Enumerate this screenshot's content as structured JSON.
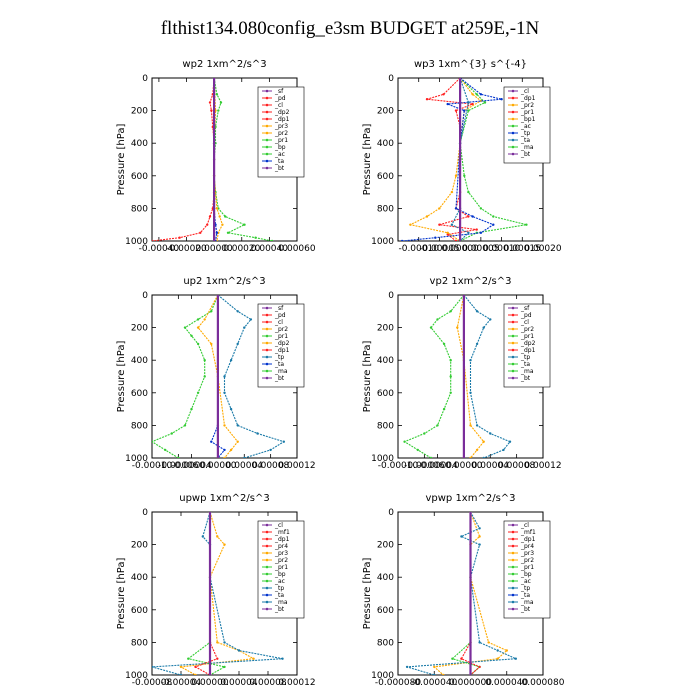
{
  "figure": {
    "title": "flthist134.080config_e3sm  BUDGET at259E,-1N"
  },
  "chart_data": [
    {
      "type": "line",
      "title": "wp2   1xm^2/s^3",
      "ylabel": "Pressure [hPa]",
      "ylim": [
        1000,
        0
      ],
      "xlim": [
        -0.00045,
        0.0006
      ],
      "xticks": [
        "-0.00040",
        "-0.00020",
        "0.00000",
        "0.00020",
        "0.00040",
        "0.00060"
      ],
      "xtick_values": [
        -0.0004,
        -0.0002,
        0,
        0.0002,
        0.0004,
        0.0006
      ],
      "yticks": [
        0,
        200,
        400,
        600,
        800,
        1000
      ],
      "legend": [
        "_sf",
        "_pd",
        "_cl",
        "_dp2",
        "_dp1",
        "_pr3",
        "_pr2",
        "_pr1",
        "_bp",
        "_ac",
        "_ta",
        "_bt"
      ],
      "series": [
        {
          "name": "_dp1",
          "color": "#ff2020",
          "y": [
            0,
            100,
            150,
            200,
            300,
            400,
            500,
            600,
            700,
            800,
            850,
            900,
            950,
            980,
            1000
          ],
          "x": [
            0,
            -1e-05,
            -3e-05,
            -2e-05,
            -1e-05,
            0,
            0,
            0,
            0,
            -1e-05,
            -3e-05,
            -5e-05,
            -0.0001,
            -0.00025,
            -0.00045
          ]
        },
        {
          "name": "_pr1",
          "color": "#33cc33",
          "y": [
            0,
            100,
            150,
            200,
            300,
            400,
            500,
            600,
            700,
            800,
            850,
            900,
            950,
            980,
            1000
          ],
          "x": [
            0,
            2e-05,
            5e-05,
            3e-05,
            1e-05,
            1e-05,
            0,
            0,
            1e-05,
            3e-05,
            8e-05,
            0.00022,
            0.0001,
            0.0003,
            0.00042
          ]
        },
        {
          "name": "_pr2",
          "color": "#ffaa00",
          "y": [
            0,
            200,
            400,
            600,
            800,
            850,
            900,
            950,
            1000
          ],
          "x": [
            0,
            1e-05,
            0,
            0,
            2e-05,
            4e-05,
            6e-05,
            3e-05,
            2e-05
          ]
        },
        {
          "name": "_ta",
          "color": "#0033cc",
          "y": [
            0,
            400,
            800,
            900,
            950,
            1000
          ],
          "x": [
            0,
            0,
            0,
            1e-05,
            2e-05,
            1e-05
          ]
        },
        {
          "name": "_bt",
          "color": "#7a2d9a",
          "y": [
            0,
            1000
          ],
          "x": [
            0,
            0
          ]
        }
      ]
    },
    {
      "type": "line",
      "title": "wp3   1xm^{3} s^{-4}",
      "ylabel": "Pressure [hPa]",
      "ylim": [
        1000,
        0
      ],
      "xlim": [
        -0.00015,
        0.0002
      ],
      "xticks": [
        "-0.00010",
        "-0.00005",
        "0.00000",
        "0.00005",
        "0.00010",
        "0.00015",
        "0.00020"
      ],
      "xtick_values": [
        -0.0001,
        -5e-05,
        0,
        5e-05,
        0.0001,
        0.00015,
        0.0002
      ],
      "yticks": [
        0,
        200,
        400,
        600,
        800,
        1000
      ],
      "legend": [
        "_cl",
        "_dp1",
        "_pr2",
        "_pr1",
        "_bp1",
        "_ac",
        "_tp",
        "_ta",
        "_ma",
        "_bt"
      ],
      "series": [
        {
          "name": "_dp1",
          "color": "#ff2020",
          "y": [
            0,
            100,
            130,
            160,
            200,
            300,
            500,
            700,
            800,
            850,
            900,
            930,
            960,
            1000
          ],
          "x": [
            0,
            -4e-05,
            -8e-05,
            3e-05,
            -1e-05,
            0,
            0,
            0,
            -1e-05,
            2e-05,
            -5e-05,
            4e-05,
            -3e-05,
            -1e-05
          ]
        },
        {
          "name": "_pr2",
          "color": "#ffaa00",
          "y": [
            0,
            100,
            140,
            200,
            400,
            600,
            700,
            800,
            850,
            900,
            950,
            1000
          ],
          "x": [
            0,
            3e-05,
            5e-05,
            1e-05,
            0,
            -1e-05,
            -2e-05,
            -5e-05,
            -8e-05,
            -0.00012,
            -3e-05,
            0
          ]
        },
        {
          "name": "_ac",
          "color": "#33cc33",
          "y": [
            0,
            100,
            150,
            200,
            400,
            600,
            700,
            800,
            850,
            900,
            950,
            1000
          ],
          "x": [
            0,
            4e-05,
            6e-05,
            2e-05,
            0,
            1e-05,
            2e-05,
            5e-05,
            8e-05,
            0.00016,
            4e-05,
            0
          ]
        },
        {
          "name": "_tp",
          "color": "#0033cc",
          "y": [
            0,
            100,
            130,
            160,
            200,
            400,
            800,
            850,
            900,
            950,
            980,
            1000
          ],
          "x": [
            0,
            5e-05,
            0.0001,
            -3e-05,
            1e-05,
            0,
            -1e-05,
            3e-05,
            8e-05,
            5e-05,
            -6e-05,
            -0.00014
          ]
        },
        {
          "name": "_ta",
          "color": "#1a7aa8",
          "y": [
            0,
            150,
            400,
            800,
            900,
            950,
            1000
          ],
          "x": [
            0,
            2e-05,
            0,
            0,
            -2e-05,
            2e-05,
            0
          ]
        },
        {
          "name": "_bt",
          "color": "#7a2d9a",
          "y": [
            0,
            1000
          ],
          "x": [
            0,
            0
          ]
        }
      ]
    },
    {
      "type": "line",
      "title": "up2   1xm^2/s^3",
      "ylabel": "Pressure [hPa]",
      "ylim": [
        1000,
        0
      ],
      "xlim": [
        -0.0001,
        0.00012
      ],
      "xticks": [
        "-0.00010",
        "-0.00006",
        "-0.00004",
        "0.00000",
        "0.00004",
        "0.00008",
        "0.00012"
      ],
      "xtick_values": [
        -0.0001,
        -6e-05,
        -4e-05,
        0,
        4e-05,
        8e-05,
        0.00012
      ],
      "yticks": [
        0,
        200,
        400,
        600,
        800,
        1000
      ],
      "legend": [
        "_sf",
        "_pd",
        "_cl",
        "_pr2",
        "_pr1",
        "_dp2",
        "_dp1",
        "_tp",
        "_ta",
        "_ma",
        "_bt"
      ],
      "series": [
        {
          "name": "_pr1",
          "color": "#33cc33",
          "y": [
            0,
            100,
            150,
            200,
            250,
            300,
            400,
            500,
            600,
            700,
            800,
            850,
            900,
            950,
            1000
          ],
          "x": [
            0,
            -1e-05,
            -3e-05,
            -5e-05,
            -4e-05,
            -3e-05,
            -2e-05,
            -2e-05,
            -3e-05,
            -4e-05,
            -5e-05,
            -7e-05,
            -0.0001,
            -8e-05,
            -6e-05
          ]
        },
        {
          "name": "_pr2",
          "color": "#ffaa00",
          "y": [
            0,
            150,
            200,
            300,
            500,
            800,
            900,
            950,
            1000
          ],
          "x": [
            0,
            -2e-05,
            -3e-05,
            -1e-05,
            0,
            1e-05,
            3e-05,
            2e-05,
            1e-05
          ]
        },
        {
          "name": "_tp",
          "color": "#1a7aa8",
          "y": [
            0,
            100,
            150,
            200,
            300,
            400,
            500,
            600,
            700,
            800,
            850,
            900,
            950,
            1000
          ],
          "x": [
            0,
            3e-05,
            5e-05,
            4e-05,
            3e-05,
            2e-05,
            1e-05,
            1e-05,
            2e-05,
            3e-05,
            6e-05,
            0.0001,
            8e-05,
            4e-05
          ]
        },
        {
          "name": "_ta",
          "color": "#0033cc",
          "y": [
            0,
            800,
            900,
            950,
            1000
          ],
          "x": [
            0,
            0,
            -1e-05,
            1e-05,
            0
          ]
        },
        {
          "name": "_dp1",
          "color": "#ff2020",
          "y": [
            0,
            1000
          ],
          "x": [
            0,
            0
          ]
        },
        {
          "name": "_bt",
          "color": "#7a2d9a",
          "y": [
            0,
            1000
          ],
          "x": [
            0,
            0
          ]
        }
      ]
    },
    {
      "type": "line",
      "title": "vp2   1xm^2/s^3",
      "ylabel": "Pressure [hPa]",
      "ylim": [
        1000,
        0
      ],
      "xlim": [
        -0.0001,
        0.00012
      ],
      "xticks": [
        "-0.00010",
        "-0.00006",
        "-0.00004",
        "0.00000",
        "0.00004",
        "0.00008",
        "0.00012"
      ],
      "xtick_values": [
        -0.0001,
        -6e-05,
        -4e-05,
        0,
        4e-05,
        8e-05,
        0.00012
      ],
      "yticks": [
        0,
        200,
        400,
        600,
        800,
        1000
      ],
      "legend": [
        "_sf",
        "_pd",
        "_cl",
        "_pr2",
        "_pr1",
        "_dp2",
        "_dp1",
        "_tp",
        "_ta",
        "_ma",
        "_bt"
      ],
      "series": [
        {
          "name": "_pr1",
          "color": "#33cc33",
          "y": [
            0,
            100,
            150,
            200,
            300,
            400,
            500,
            600,
            700,
            800,
            850,
            900,
            950,
            1000
          ],
          "x": [
            0,
            -2e-05,
            -4e-05,
            -5e-05,
            -3e-05,
            -2e-05,
            -2e-05,
            -2e-05,
            -3e-05,
            -4e-05,
            -6e-05,
            -9e-05,
            -7e-05,
            -5e-05
          ]
        },
        {
          "name": "_pr2",
          "color": "#ffaa00",
          "y": [
            0,
            200,
            400,
            800,
            900,
            950,
            1000
          ],
          "x": [
            0,
            -1e-05,
            0,
            1e-05,
            3e-05,
            2e-05,
            1e-05
          ]
        },
        {
          "name": "_tp",
          "color": "#1a7aa8",
          "y": [
            0,
            100,
            150,
            200,
            300,
            400,
            600,
            800,
            850,
            900,
            950,
            1000
          ],
          "x": [
            0,
            2e-05,
            4e-05,
            3e-05,
            2e-05,
            1e-05,
            1e-05,
            2e-05,
            4e-05,
            7e-05,
            6e-05,
            3e-05
          ]
        },
        {
          "name": "_dp1",
          "color": "#ff2020",
          "y": [
            0,
            1000
          ],
          "x": [
            0,
            0
          ]
        },
        {
          "name": "_bt",
          "color": "#7a2d9a",
          "y": [
            0,
            1000
          ],
          "x": [
            0,
            0
          ]
        }
      ]
    },
    {
      "type": "line",
      "title": "upwp   1xm^2/s^3",
      "ylabel": "Pressure [hPa]",
      "ylim": [
        1000,
        0
      ],
      "xlim": [
        -8e-05,
        0.00012
      ],
      "xticks": [
        "-0.00008",
        "-0.00004",
        "0.00000",
        "0.00004",
        "0.00008",
        "0.00012"
      ],
      "xtick_values": [
        -8e-05,
        -4e-05,
        0,
        4e-05,
        8e-05,
        0.00012
      ],
      "yticks": [
        0,
        200,
        400,
        600,
        800,
        1000
      ],
      "legend": [
        "_cl",
        "_mf1",
        "_dp1",
        "_pr4",
        "_pr3",
        "_pr2",
        "_pr1",
        "_bp",
        "_ac",
        "_tp",
        "_ta",
        "_ma",
        "_bt"
      ],
      "series": [
        {
          "name": "_pr2",
          "color": "#ffaa00",
          "y": [
            0,
            150,
            200,
            400,
            800,
            850,
            900,
            950,
            1000
          ],
          "x": [
            0,
            1e-05,
            2e-05,
            0,
            1e-05,
            4e-05,
            6e-05,
            -4e-05,
            -2e-05
          ]
        },
        {
          "name": "_tp",
          "color": "#1a7aa8",
          "y": [
            0,
            150,
            200,
            400,
            800,
            850,
            900,
            950,
            1000
          ],
          "x": [
            0,
            -1e-05,
            0,
            0,
            2e-05,
            4e-05,
            0.0001,
            -8e-05,
            -4e-05
          ]
        },
        {
          "name": "_pr1",
          "color": "#33cc33",
          "y": [
            0,
            800,
            900,
            950,
            1000
          ],
          "x": [
            0,
            0,
            -3e-05,
            2e-05,
            0
          ]
        },
        {
          "name": "_dp1",
          "color": "#ff2020",
          "y": [
            0,
            800,
            900,
            950,
            1000
          ],
          "x": [
            0,
            0,
            1e-05,
            -2e-05,
            0
          ]
        },
        {
          "name": "_bt",
          "color": "#7a2d9a",
          "y": [
            0,
            1000
          ],
          "x": [
            0,
            0
          ]
        }
      ]
    },
    {
      "type": "line",
      "title": "vpwp   1xm^2/s^3",
      "ylabel": "Pressure [hPa]",
      "ylim": [
        1000,
        0
      ],
      "xlim": [
        -8e-05,
        8e-05
      ],
      "xticks": [
        "-0.000080",
        "-0.000040",
        "0.000000",
        "0.000040",
        "0.000080"
      ],
      "xtick_values": [
        -8e-05,
        -4e-05,
        0,
        4e-05,
        8e-05
      ],
      "yticks": [
        0,
        200,
        400,
        600,
        800,
        1000
      ],
      "legend": [
        "_cl",
        "_mf1",
        "_dp1",
        "_pr4",
        "_pr3",
        "_pr2",
        "_pr1",
        "_bp",
        "_ac",
        "_tp",
        "_ta",
        "_ma",
        "_bt"
      ],
      "series": [
        {
          "name": "_pr2",
          "color": "#ffaa00",
          "y": [
            0,
            150,
            200,
            400,
            800,
            850,
            900,
            950,
            1000
          ],
          "x": [
            0,
            1e-05,
            0,
            0,
            2e-05,
            4e-05,
            3e-05,
            -4e-05,
            -3e-05
          ]
        },
        {
          "name": "_tp",
          "color": "#1a7aa8",
          "y": [
            0,
            100,
            150,
            200,
            400,
            800,
            850,
            900,
            950,
            1000
          ],
          "x": [
            0,
            1e-05,
            -1e-05,
            1e-05,
            0,
            1e-05,
            3e-05,
            5e-05,
            -7e-05,
            -4e-05
          ]
        },
        {
          "name": "_pr1",
          "color": "#33cc33",
          "y": [
            0,
            800,
            900,
            950,
            1000
          ],
          "x": [
            0,
            0,
            -2e-05,
            1e-05,
            0
          ]
        },
        {
          "name": "_dp1",
          "color": "#ff2020",
          "y": [
            0,
            800,
            900,
            950,
            1000
          ],
          "x": [
            0,
            0,
            -1e-05,
            1e-05,
            0
          ]
        },
        {
          "name": "_bt",
          "color": "#7a2d9a",
          "y": [
            0,
            1000
          ],
          "x": [
            0,
            0
          ]
        }
      ]
    }
  ]
}
